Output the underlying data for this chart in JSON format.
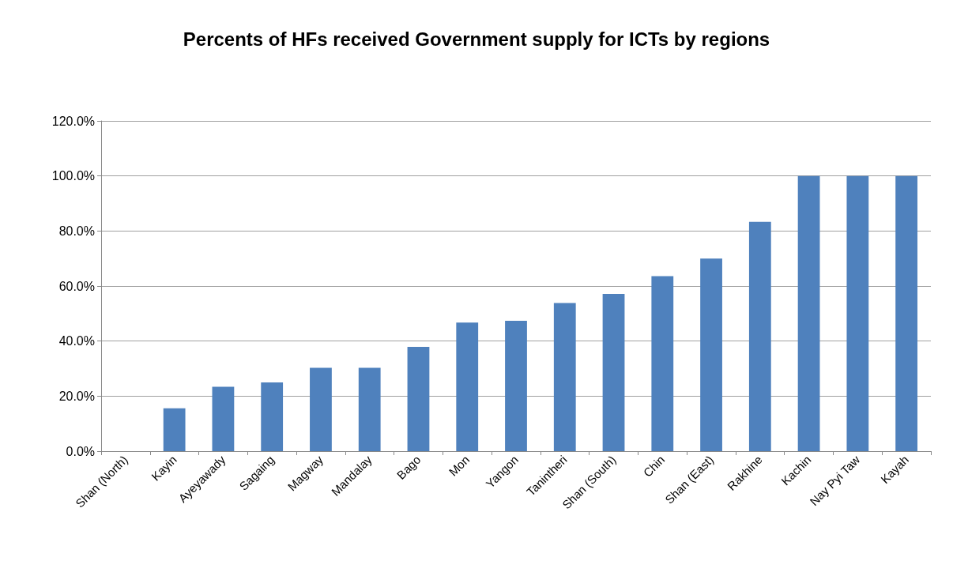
{
  "chart_data": {
    "type": "bar",
    "title": "Percents of HFs received Government supply for ICTs by regions",
    "categories": [
      "Shan (North)",
      "Kayin",
      "Ayeyawady",
      "Sagaing",
      "Magway",
      "Mandalay",
      "Bago",
      "Mon",
      "Yangon",
      "Tanintheri",
      "Shan (South)",
      "Chin",
      "Shan (East)",
      "Rakhine",
      "Kachin",
      "Nay Pyi Taw",
      "Kayah"
    ],
    "values": [
      0,
      15.6,
      23.4,
      25,
      30.3,
      30.3,
      37.9,
      46.7,
      47.4,
      53.8,
      57.1,
      63.6,
      70,
      83.3,
      100,
      100,
      100
    ],
    "color": "#4f81bd",
    "ylim": [
      0,
      120
    ],
    "yticks": [
      {
        "value": 0,
        "label": "0.0%"
      },
      {
        "value": 20,
        "label": "20.0%"
      },
      {
        "value": 40,
        "label": "40.0%"
      },
      {
        "value": 60,
        "label": "60.0%"
      },
      {
        "value": 80,
        "label": "80.0%"
      },
      {
        "value": 100,
        "label": "100.0%"
      },
      {
        "value": 120,
        "label": "120.0%"
      }
    ],
    "grid": "y"
  }
}
